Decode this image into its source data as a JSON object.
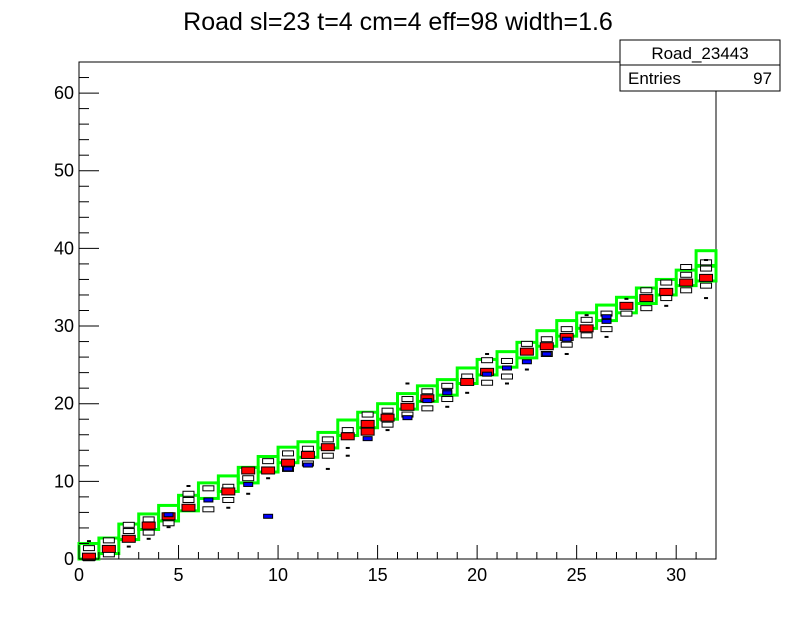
{
  "chart_data": {
    "type": "heatmap",
    "title": "Road sl=23 t=4 cm=4 eff=98 width=1.6",
    "xlabel": "",
    "ylabel": "",
    "xlim": [
      0,
      32
    ],
    "ylim": [
      0,
      64
    ],
    "x_ticks": [
      0,
      5,
      10,
      15,
      20,
      25,
      30
    ],
    "y_ticks": [
      0,
      10,
      20,
      30,
      40,
      50,
      60
    ],
    "grid": false,
    "stats_box": {
      "name": "Road_23443",
      "entries_label": "Entries",
      "entries_value": "97"
    },
    "colors": {
      "road_box": "#00ff00",
      "hit_red": "#ff0000",
      "hit_blue": "#0000ff",
      "cell_outline": "#000000"
    },
    "road_boxes": [
      [
        0,
        0.0
      ],
      [
        1,
        0.7
      ],
      [
        2,
        2.5
      ],
      [
        3,
        3.8
      ],
      [
        4,
        4.9
      ],
      [
        5,
        6.2
      ],
      [
        6,
        7.8
      ],
      [
        7,
        8.7
      ],
      [
        8,
        9.8
      ],
      [
        9,
        11.2
      ],
      [
        10,
        12.4
      ],
      [
        11,
        13.1
      ],
      [
        12,
        14.3
      ],
      [
        13,
        15.9
      ],
      [
        14,
        16.9
      ],
      [
        15,
        18.0
      ],
      [
        16,
        19.3
      ],
      [
        17,
        20.3
      ],
      [
        18,
        21.1
      ],
      [
        19,
        22.6
      ],
      [
        20,
        23.7
      ],
      [
        21,
        24.7
      ],
      [
        22,
        25.9
      ],
      [
        23,
        27.4
      ],
      [
        24,
        28.7
      ],
      [
        25,
        29.7
      ],
      [
        26,
        30.7
      ],
      [
        27,
        31.7
      ],
      [
        28,
        32.9
      ],
      [
        29,
        34.0
      ],
      [
        30,
        35.2
      ],
      [
        31,
        35.8
      ],
      [
        31,
        37.7
      ]
    ],
    "hits_red": [
      [
        0,
        0.3
      ],
      [
        1,
        1.3
      ],
      [
        2,
        2.6
      ],
      [
        3,
        4.3
      ],
      [
        4,
        5.5
      ],
      [
        5,
        6.6
      ],
      [
        7,
        8.7
      ],
      [
        8,
        11.4
      ],
      [
        9,
        11.4
      ],
      [
        10,
        12.4
      ],
      [
        11,
        13.4
      ],
      [
        12,
        14.4
      ],
      [
        13,
        15.8
      ],
      [
        14,
        16.4
      ],
      [
        14,
        17.4
      ],
      [
        15,
        18.2
      ],
      [
        16,
        19.6
      ],
      [
        17,
        20.7
      ],
      [
        19,
        22.8
      ],
      [
        20,
        24.1
      ],
      [
        22,
        26.7
      ],
      [
        23,
        27.4
      ],
      [
        24,
        28.6
      ],
      [
        25,
        29.7
      ],
      [
        27,
        32.6
      ],
      [
        28,
        33.6
      ],
      [
        29,
        34.4
      ],
      [
        30,
        35.6
      ],
      [
        31,
        36.2
      ]
    ],
    "hits_blue": [
      [
        4,
        5.7
      ],
      [
        6,
        7.6
      ],
      [
        8,
        9.6
      ],
      [
        10,
        11.6
      ],
      [
        11,
        12.1
      ],
      [
        14,
        15.5
      ],
      [
        16,
        18.2
      ],
      [
        17,
        20.4
      ],
      [
        18,
        21.6
      ],
      [
        18,
        21.4
      ],
      [
        20,
        23.8
      ],
      [
        21,
        24.6
      ],
      [
        22,
        25.4
      ],
      [
        23,
        26.4
      ],
      [
        24,
        28.3
      ],
      [
        26,
        30.6
      ],
      [
        26,
        31.2
      ],
      [
        9,
        5.5
      ]
    ],
    "hits_white": [
      [
        0,
        1.4
      ],
      [
        1,
        0.6
      ],
      [
        2,
        3.6
      ],
      [
        3,
        3.4
      ],
      [
        3,
        5.1
      ],
      [
        4,
        4.6
      ],
      [
        5,
        7.6
      ],
      [
        5,
        8.4
      ],
      [
        6,
        6.4
      ],
      [
        6,
        9.1
      ],
      [
        7,
        7.6
      ],
      [
        7,
        9.3
      ],
      [
        8,
        10.4
      ],
      [
        9,
        12.6
      ],
      [
        10,
        11.6
      ],
      [
        10,
        13.6
      ],
      [
        11,
        12.3
      ],
      [
        11,
        14.2
      ],
      [
        12,
        13.3
      ],
      [
        12,
        15.4
      ],
      [
        13,
        16.6
      ],
      [
        14,
        18.6
      ],
      [
        15,
        17.3
      ],
      [
        15,
        19.1
      ],
      [
        16,
        18.6
      ],
      [
        16,
        20.6
      ],
      [
        17,
        19.4
      ],
      [
        17,
        21.6
      ],
      [
        18,
        20.6
      ],
      [
        18,
        22.3
      ],
      [
        19,
        23.5
      ],
      [
        20,
        22.7
      ],
      [
        20,
        25.6
      ],
      [
        21,
        23.5
      ],
      [
        21,
        25.5
      ],
      [
        22,
        27.7
      ],
      [
        23,
        26.4
      ],
      [
        23,
        28.3
      ],
      [
        24,
        27.6
      ],
      [
        24,
        29.6
      ],
      [
        25,
        28.8
      ],
      [
        25,
        30.8
      ],
      [
        26,
        29.6
      ],
      [
        26,
        31.6
      ],
      [
        27,
        31.6
      ],
      [
        28,
        32.3
      ],
      [
        28,
        34.6
      ],
      [
        29,
        33.6
      ],
      [
        29,
        35.6
      ],
      [
        30,
        34.6
      ],
      [
        30,
        36.6
      ],
      [
        30,
        37.6
      ],
      [
        31,
        35.2
      ],
      [
        31,
        37.4
      ],
      [
        31,
        38.2
      ],
      [
        0,
        0.1
      ],
      [
        1,
        2.4
      ],
      [
        2,
        4.4
      ]
    ],
    "hits_small_marks": [
      [
        0,
        2.3
      ],
      [
        2,
        1.6
      ],
      [
        3,
        2.6
      ],
      [
        4,
        4.1
      ],
      [
        5,
        9.4
      ],
      [
        7,
        6.6
      ],
      [
        8,
        8.4
      ],
      [
        13,
        14.3
      ],
      [
        12,
        11.6
      ],
      [
        13,
        13.3
      ],
      [
        16,
        22.6
      ],
      [
        19,
        21.4
      ],
      [
        20,
        26.4
      ],
      [
        22,
        24.4
      ],
      [
        24,
        26.4
      ],
      [
        25,
        31.4
      ],
      [
        26,
        28.6
      ],
      [
        29,
        32.6
      ],
      [
        31,
        33.6
      ],
      [
        31,
        38.5
      ],
      [
        9,
        10.4
      ],
      [
        15,
        16.6
      ],
      [
        18,
        19.6
      ],
      [
        21,
        22.6
      ],
      [
        27,
        33.5
      ]
    ]
  }
}
